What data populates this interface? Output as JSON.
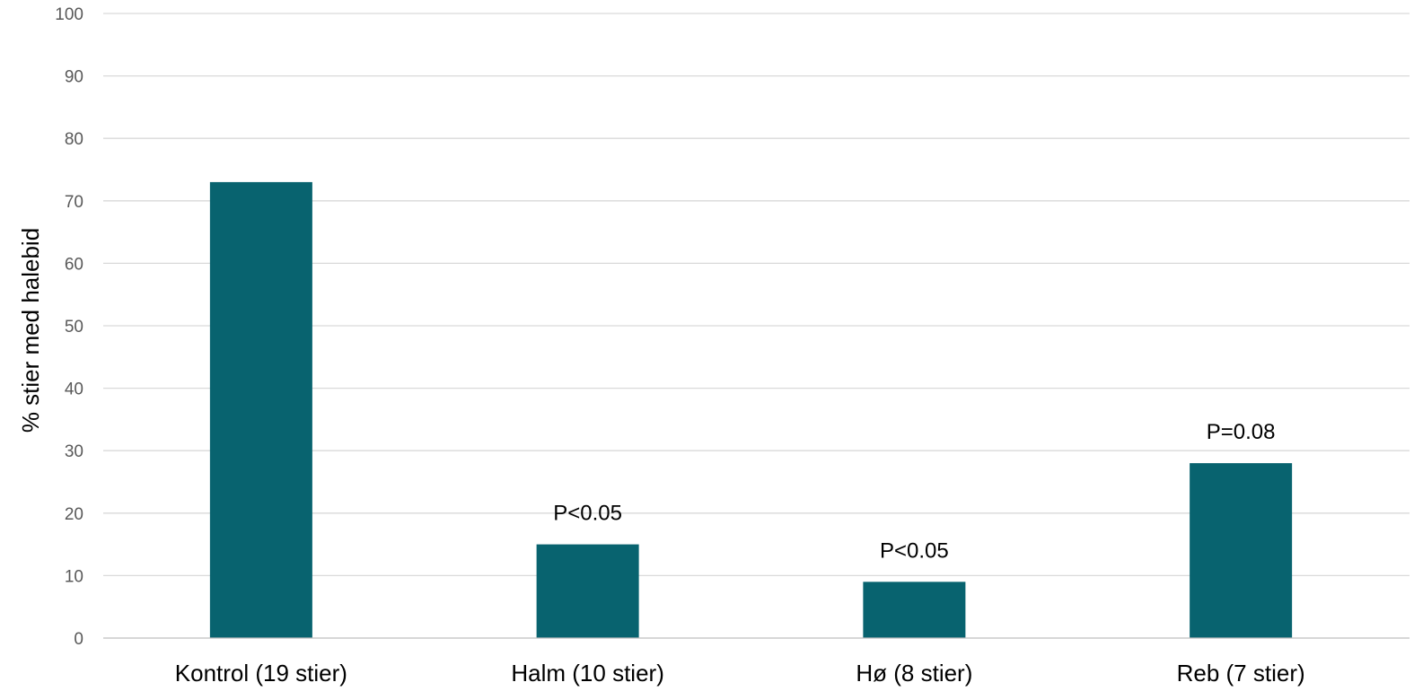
{
  "chart_data": {
    "type": "bar",
    "title": "",
    "xlabel": "",
    "ylabel": "% stier med halebid",
    "ylim": [
      0,
      100
    ],
    "yticks": [
      0,
      10,
      20,
      30,
      40,
      50,
      60,
      70,
      80,
      90,
      100
    ],
    "categories": [
      "Kontrol (19 stier)",
      "Halm (10 stier)",
      "Hø (8 stier)",
      "Reb (7 stier)"
    ],
    "values": [
      73,
      15,
      9,
      28
    ],
    "annotations": [
      "",
      "P<0.05",
      "P<0.05",
      "P=0.08"
    ],
    "bar_color": "#08636f",
    "grid": true,
    "legend": "none"
  }
}
